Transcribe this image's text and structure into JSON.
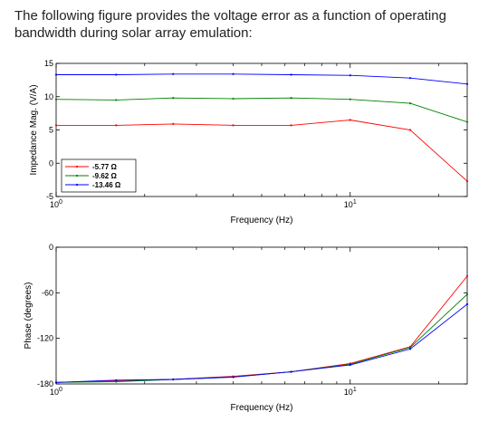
{
  "intro_text": "The following figure provides the voltage error as a function of operating bandwidth during solar array emulation:",
  "chart_data": [
    {
      "type": "line",
      "xscale": "log",
      "xlim": [
        1,
        25
      ],
      "ylim": [
        -5,
        15
      ],
      "yticks": [
        -5,
        0,
        5,
        10,
        15
      ],
      "xtick_labels": [
        {
          "value": 1,
          "base": "10",
          "exp": "0"
        },
        {
          "value": 10,
          "base": "10",
          "exp": "1"
        }
      ],
      "xlabel": "Frequency (Hz)",
      "ylabel": "Impedance Mag. (V/A)",
      "legend_position": "bottom-left",
      "x": [
        1,
        1.6,
        2.5,
        4,
        6.3,
        10,
        16,
        25
      ],
      "series": [
        {
          "name": "-5.77 Ω",
          "color": "#ff0000",
          "values": [
            5.7,
            5.7,
            5.9,
            5.7,
            5.7,
            6.5,
            5.0,
            -2.7
          ]
        },
        {
          "name": "-9.62 Ω",
          "color": "#008000",
          "values": [
            9.6,
            9.5,
            9.8,
            9.7,
            9.8,
            9.6,
            9.0,
            6.2
          ]
        },
        {
          "name": "-13.46 Ω",
          "color": "#0000ff",
          "values": [
            13.3,
            13.3,
            13.4,
            13.4,
            13.3,
            13.2,
            12.8,
            11.9
          ]
        }
      ]
    },
    {
      "type": "line",
      "xscale": "log",
      "xlim": [
        1,
        25
      ],
      "ylim": [
        -180,
        0
      ],
      "yticks": [
        -180,
        -120,
        -60,
        0
      ],
      "xtick_labels": [
        {
          "value": 1,
          "base": "10",
          "exp": "0"
        },
        {
          "value": 10,
          "base": "10",
          "exp": "1"
        }
      ],
      "xlabel": "Frequency (Hz)",
      "ylabel": "Phase (degrees)",
      "x": [
        1,
        1.6,
        2.5,
        4,
        6.3,
        10,
        16,
        25
      ],
      "series": [
        {
          "color": "#ff0000",
          "values": [
            -178,
            -176,
            -174,
            -170,
            -164,
            -153,
            -131,
            -38
          ]
        },
        {
          "color": "#008000",
          "values": [
            -178,
            -177,
            -174,
            -171,
            -164,
            -154,
            -132,
            -62
          ]
        },
        {
          "color": "#0000ff",
          "values": [
            -178,
            -175,
            -174,
            -171,
            -164,
            -155,
            -134,
            -75
          ]
        }
      ]
    }
  ]
}
